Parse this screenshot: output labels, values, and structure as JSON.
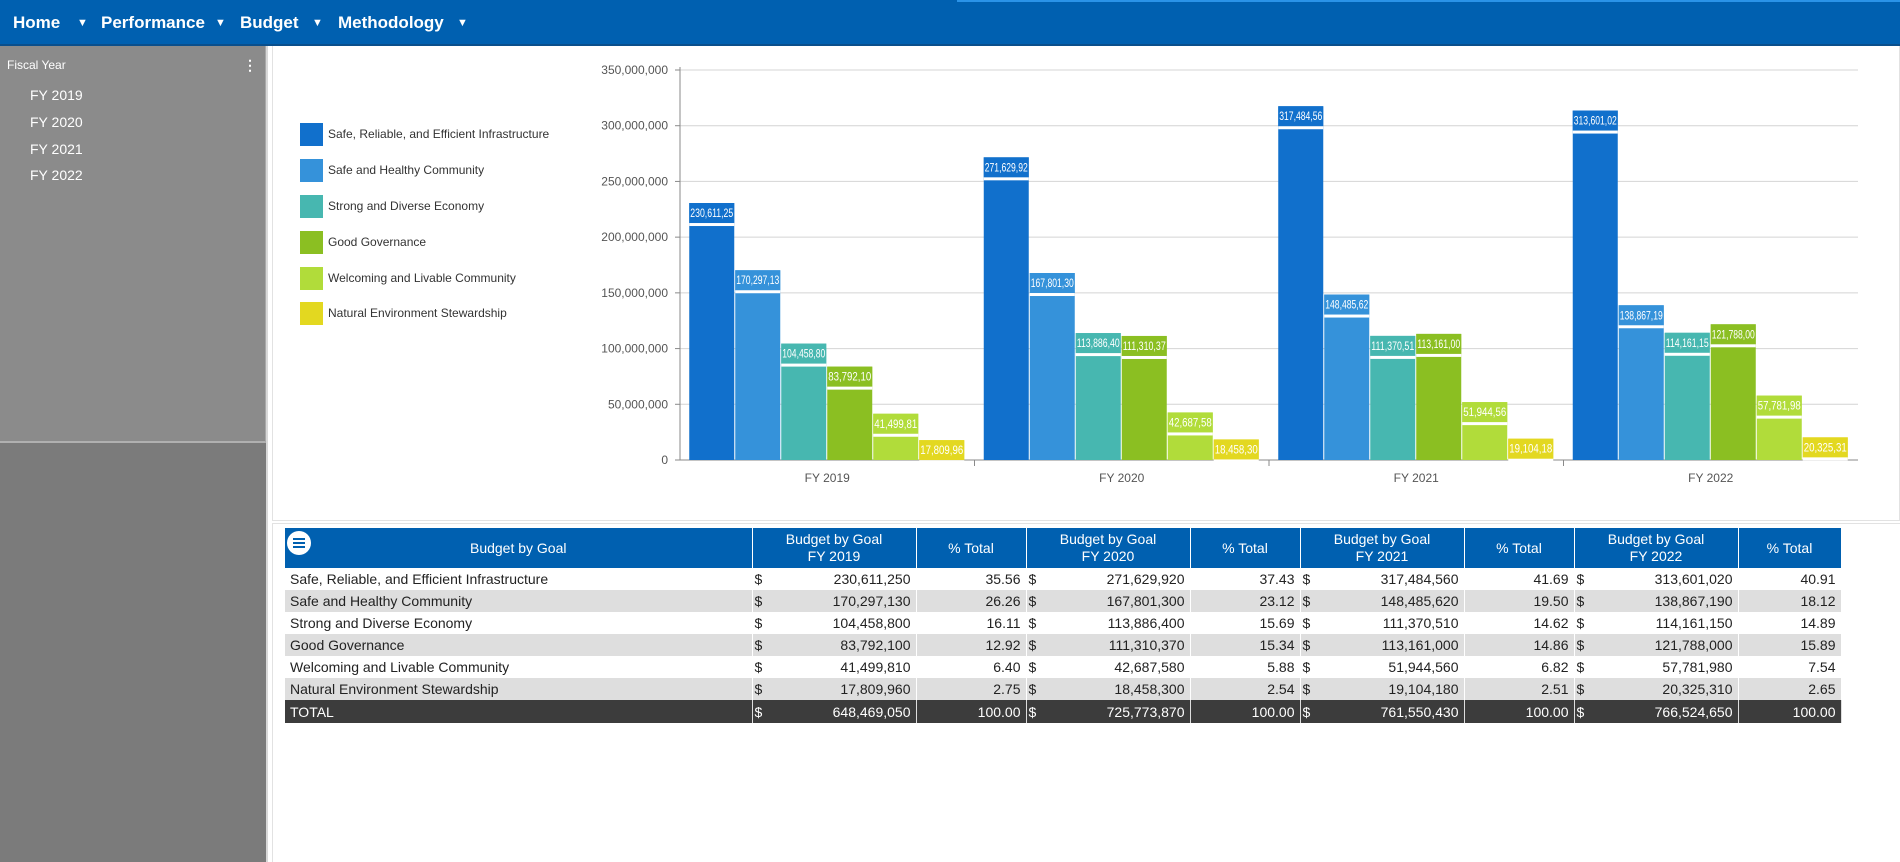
{
  "nav": {
    "items": [
      {
        "label": "Home"
      },
      {
        "label": "Performance"
      },
      {
        "label": "Budget"
      },
      {
        "label": "Methodology"
      }
    ],
    "caret": "▼"
  },
  "filter": {
    "title": "Fiscal Year",
    "menu_icon": "⋮",
    "items": [
      "FY 2019",
      "FY 2020",
      "FY 2021",
      "FY 2022"
    ]
  },
  "colors": {
    "nav_bg": "#0060b0",
    "series": [
      "#1170cc",
      "#3592da",
      "#47b7b0",
      "#8bbf22",
      "#b1dc3a",
      "#e3d820"
    ]
  },
  "chart_data": {
    "type": "bar",
    "categories": [
      "FY 2019",
      "FY 2020",
      "FY 2021",
      "FY 2022"
    ],
    "ylim": [
      0,
      350000000
    ],
    "yticks": [
      "0",
      "50,000,000",
      "100,000,000",
      "150,000,000",
      "200,000,000",
      "250,000,000",
      "300,000,000",
      "350,000,000"
    ],
    "grid": true,
    "legend_position": "left",
    "series": [
      {
        "name": "Safe, Reliable, and Efficient Infrastructure",
        "values": [
          230611250,
          271629920,
          317484560,
          313601020
        ],
        "labels": [
          "230,611,25",
          "271,629,92",
          "317,484,56",
          "313,601,02"
        ]
      },
      {
        "name": "Safe and Healthy Community",
        "values": [
          170297130,
          167801300,
          148485620,
          138867190
        ],
        "labels": [
          "170,297,13",
          "167,801,30",
          "148,485,62",
          "138,867,19"
        ]
      },
      {
        "name": "Strong and Diverse Economy",
        "values": [
          104458800,
          113886400,
          111370510,
          114161150
        ],
        "labels": [
          "104,458,80",
          "113,886,40",
          "111,370,51",
          "114,161,15"
        ]
      },
      {
        "name": "Good Governance",
        "values": [
          83792100,
          111310370,
          113161000,
          121788000
        ],
        "labels": [
          "83,792,10",
          "111,310,37",
          "113,161,00",
          "121,788,00"
        ]
      },
      {
        "name": "Welcoming and Livable Community",
        "values": [
          41499810,
          42687580,
          51944560,
          57781980
        ],
        "labels": [
          "41,499,81",
          "42,687,58",
          "51,944,56",
          "57,781,98"
        ]
      },
      {
        "name": "Natural Environment Stewardship",
        "values": [
          17809960,
          18458300,
          19104180,
          20325310
        ],
        "labels": [
          "17,809,96",
          "18,458,30",
          "19,104,18",
          "20,325,31"
        ]
      }
    ]
  },
  "table": {
    "header_goal": "Budget by Goal",
    "years": [
      {
        "budget_header_l1": "Budget by Goal",
        "budget_header_l2": "FY 2019",
        "pct_header": "% Total"
      },
      {
        "budget_header_l1": "Budget by Goal",
        "budget_header_l2": "FY 2020",
        "pct_header": "% Total"
      },
      {
        "budget_header_l1": "Budget by Goal",
        "budget_header_l2": "FY 2021",
        "pct_header": "% Total"
      },
      {
        "budget_header_l1": "Budget by Goal",
        "budget_header_l2": "FY 2022",
        "pct_header": "% Total"
      }
    ],
    "currency": "$",
    "rows": [
      {
        "goal": "Safe, Reliable, and Efficient Infrastructure",
        "cells": [
          [
            "230,611,250",
            "35.56"
          ],
          [
            "271,629,920",
            "37.43"
          ],
          [
            "317,484,560",
            "41.69"
          ],
          [
            "313,601,020",
            "40.91"
          ]
        ]
      },
      {
        "goal": "Safe and Healthy Community",
        "cells": [
          [
            "170,297,130",
            "26.26"
          ],
          [
            "167,801,300",
            "23.12"
          ],
          [
            "148,485,620",
            "19.50"
          ],
          [
            "138,867,190",
            "18.12"
          ]
        ]
      },
      {
        "goal": "Strong and Diverse Economy",
        "cells": [
          [
            "104,458,800",
            "16.11"
          ],
          [
            "113,886,400",
            "15.69"
          ],
          [
            "111,370,510",
            "14.62"
          ],
          [
            "114,161,150",
            "14.89"
          ]
        ]
      },
      {
        "goal": "Good Governance",
        "cells": [
          [
            "83,792,100",
            "12.92"
          ],
          [
            "111,310,370",
            "15.34"
          ],
          [
            "113,161,000",
            "14.86"
          ],
          [
            "121,788,000",
            "15.89"
          ]
        ]
      },
      {
        "goal": "Welcoming and Livable Community",
        "cells": [
          [
            "41,499,810",
            "6.40"
          ],
          [
            "42,687,580",
            "5.88"
          ],
          [
            "51,944,560",
            "6.82"
          ],
          [
            "57,781,980",
            "7.54"
          ]
        ]
      },
      {
        "goal": "Natural Environment Stewardship",
        "cells": [
          [
            "17,809,960",
            "2.75"
          ],
          [
            "18,458,300",
            "2.54"
          ],
          [
            "19,104,180",
            "2.51"
          ],
          [
            "20,325,310",
            "2.65"
          ]
        ]
      }
    ],
    "total": {
      "goal": "TOTAL",
      "cells": [
        [
          "648,469,050",
          "100.00"
        ],
        [
          "725,773,870",
          "100.00"
        ],
        [
          "761,550,430",
          "100.00"
        ],
        [
          "766,524,650",
          "100.00"
        ]
      ]
    }
  }
}
